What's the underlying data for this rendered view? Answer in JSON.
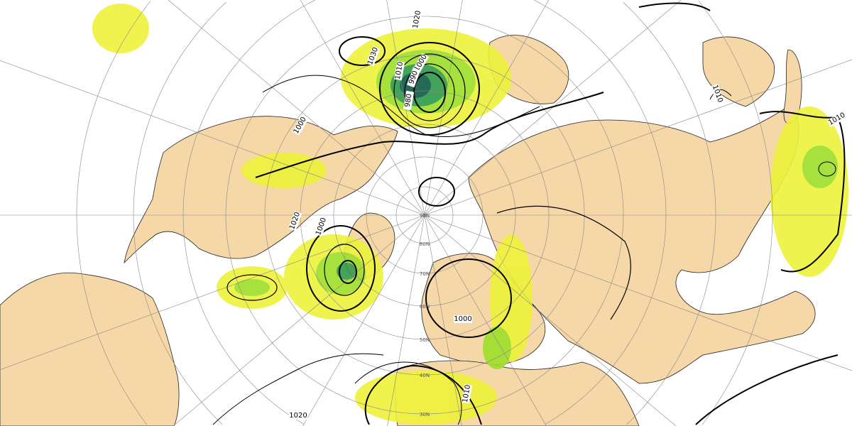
{
  "map": {
    "projection": "polar-stereographic",
    "colors": {
      "land": "#f5d7a8",
      "precip_light": "#eef23a",
      "precip_mid": "#9ede2a",
      "precip_heavy": "#2f9a4a",
      "precip_extreme": "#0e5a45",
      "isobar": "#000000",
      "graticule": "#888888"
    },
    "latitude_labels": [
      "90N",
      "80N",
      "70N",
      "60N",
      "50N",
      "40N",
      "30N"
    ],
    "isobar_labels": [
      "1020",
      "1030",
      "1010",
      "1000",
      "990",
      "980",
      "1000",
      "1020",
      "1000",
      "1000",
      "1010",
      "1020",
      "1010",
      "1010"
    ]
  }
}
